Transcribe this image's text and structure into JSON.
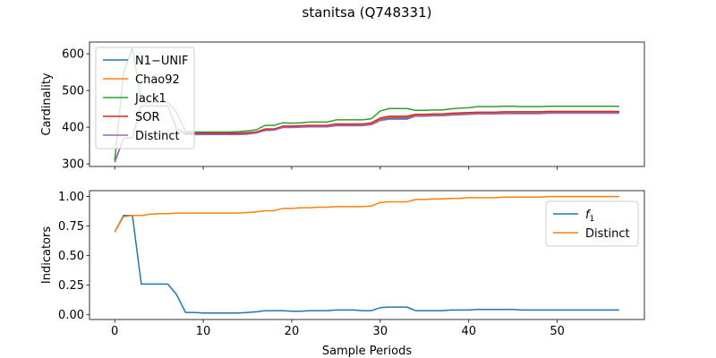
{
  "figure": {
    "title": "stanitsa (Q748331)"
  },
  "chart_data": [
    {
      "type": "line",
      "ylabel": "Cardinality",
      "xlabel": "",
      "xlim": [
        -2.85,
        59.85
      ],
      "ylim": [
        293,
        632
      ],
      "xticks": [
        0,
        10,
        20,
        30,
        40,
        50
      ],
      "xtick_labels_visible": false,
      "yticks": [
        300,
        400,
        500,
        600
      ],
      "grid": false,
      "legend": "upper-left",
      "series": [
        {
          "name": "N1−UNIF",
          "color": "#1f77b4",
          "x": [
            0,
            1,
            2,
            3,
            4,
            5,
            6,
            7,
            8,
            9,
            10,
            11,
            12,
            13,
            14,
            15,
            16,
            17,
            18,
            19,
            20,
            21,
            22,
            23,
            24,
            25,
            26,
            27,
            28,
            29,
            30,
            31,
            32,
            33,
            34,
            35,
            36,
            37,
            38,
            39,
            40,
            41,
            42,
            43,
            44,
            45,
            46,
            47,
            48,
            49,
            50,
            51,
            52,
            53,
            54,
            55,
            56,
            57
          ],
          "y": [
            305,
            370,
            372,
            458,
            458,
            458,
            458,
            395,
            382,
            382,
            382,
            382,
            382,
            382,
            382,
            383,
            386,
            393,
            394,
            401,
            401,
            402,
            403,
            403,
            403,
            406,
            406,
            406,
            406,
            409,
            420,
            425,
            425,
            425,
            432,
            432,
            433,
            433,
            435,
            436,
            437,
            438,
            438,
            438,
            439,
            439,
            439,
            439,
            439,
            440,
            440,
            440,
            440,
            440,
            440,
            440,
            440,
            440
          ]
        },
        {
          "name": "Chao92",
          "color": "#ff7f0e",
          "x": [
            0,
            1,
            2,
            3,
            4,
            5,
            6,
            7,
            8,
            9,
            10,
            11,
            12,
            13,
            14,
            15,
            16,
            17,
            18,
            19,
            20,
            21,
            22,
            23,
            24,
            25,
            26,
            27,
            28,
            29,
            30,
            31,
            32,
            33,
            34,
            35,
            36,
            37,
            38,
            39,
            40,
            41,
            42,
            43,
            44,
            45,
            46,
            47,
            48,
            49,
            50,
            51,
            52,
            53,
            54,
            55,
            56,
            57
          ],
          "y": [
            305,
            370,
            372,
            458,
            458,
            458,
            458,
            395,
            384,
            384,
            384,
            384,
            384,
            384,
            384,
            385,
            387,
            395,
            395,
            402,
            402,
            403,
            404,
            404,
            404,
            408,
            408,
            408,
            408,
            411,
            423,
            428,
            428,
            428,
            434,
            434,
            435,
            435,
            437,
            438,
            439,
            440,
            440,
            440,
            441,
            441,
            441,
            441,
            441,
            442,
            442,
            442,
            442,
            442,
            442,
            442,
            442,
            442
          ]
        },
        {
          "name": "Jack1",
          "color": "#2ca02c",
          "x": [
            0,
            1,
            2,
            3,
            4,
            5,
            6,
            7,
            8,
            9,
            10,
            11,
            12,
            13,
            14,
            15,
            16,
            17,
            18,
            19,
            20,
            21,
            22,
            23,
            24,
            25,
            26,
            27,
            28,
            29,
            30,
            31,
            32,
            33,
            34,
            35,
            36,
            37,
            38,
            39,
            40,
            41,
            42,
            43,
            44,
            45,
            46,
            47,
            48,
            49,
            50,
            51,
            52,
            53,
            54,
            55,
            56,
            57
          ],
          "y": [
            310,
            548,
            617,
            468,
            468,
            468,
            468,
            440,
            388,
            387,
            387,
            387,
            387,
            387,
            388,
            390,
            393,
            405,
            405,
            412,
            411,
            412,
            414,
            414,
            414,
            420,
            420,
            420,
            420,
            423,
            444,
            451,
            451,
            451,
            446,
            446,
            447,
            447,
            450,
            452,
            453,
            456,
            456,
            456,
            457,
            457,
            456,
            456,
            456,
            457,
            457,
            457,
            457,
            457,
            457,
            457,
            457,
            457
          ]
        },
        {
          "name": "SOR",
          "color": "#d62728",
          "x": [
            0,
            1,
            2,
            3,
            4,
            5,
            6,
            7,
            8,
            9,
            10,
            11,
            12,
            13,
            14,
            15,
            16,
            17,
            18,
            19,
            20,
            21,
            22,
            23,
            24,
            25,
            26,
            27,
            28,
            29,
            30,
            31,
            32,
            33,
            34,
            35,
            36,
            37,
            38,
            39,
            40,
            41,
            42,
            43,
            44,
            45,
            46,
            47,
            48,
            49,
            50,
            51,
            52,
            53,
            54,
            55,
            56,
            57
          ],
          "y": [
            305,
            370,
            372,
            458,
            458,
            458,
            458,
            395,
            384,
            384,
            384,
            384,
            384,
            384,
            384,
            385,
            387,
            395,
            395,
            403,
            403,
            404,
            405,
            405,
            405,
            409,
            409,
            409,
            409,
            412,
            425,
            430,
            430,
            430,
            435,
            435,
            436,
            436,
            438,
            439,
            440,
            441,
            441,
            441,
            442,
            442,
            442,
            442,
            442,
            443,
            443,
            443,
            443,
            443,
            443,
            443,
            443,
            443
          ]
        },
        {
          "name": "Distinct",
          "color": "#9467bd",
          "x": [
            0,
            1,
            2,
            3,
            4,
            5,
            6,
            7,
            8,
            9,
            10,
            11,
            12,
            13,
            14,
            15,
            16,
            17,
            18,
            19,
            20,
            21,
            22,
            23,
            24,
            25,
            26,
            27,
            28,
            29,
            30,
            31,
            32,
            33,
            34,
            35,
            36,
            37,
            38,
            39,
            40,
            41,
            42,
            43,
            44,
            45,
            46,
            47,
            48,
            49,
            50,
            51,
            52,
            53,
            54,
            55,
            56,
            57
          ],
          "y": [
            305,
            370,
            372,
            458,
            458,
            458,
            458,
            395,
            380,
            380,
            380,
            380,
            380,
            380,
            380,
            381,
            384,
            391,
            392,
            399,
            399,
            400,
            401,
            401,
            401,
            404,
            404,
            404,
            404,
            407,
            418,
            422,
            422,
            422,
            430,
            430,
            431,
            431,
            433,
            434,
            435,
            436,
            436,
            436,
            437,
            437,
            437,
            437,
            437,
            438,
            438,
            438,
            438,
            438,
            438,
            438,
            438,
            438
          ]
        }
      ]
    },
    {
      "type": "line",
      "ylabel": "Indicators",
      "xlabel": "Sample Periods",
      "xlim": [
        -2.85,
        59.85
      ],
      "ylim": [
        -0.04,
        1.05
      ],
      "xticks": [
        0,
        10,
        20,
        30,
        40,
        50
      ],
      "yticks": [
        0.0,
        0.25,
        0.5,
        0.75,
        1.0
      ],
      "ytick_labels": [
        "0.00",
        "0.25",
        "0.50",
        "0.75",
        "1.00"
      ],
      "grid": false,
      "legend": "upper-right",
      "series": [
        {
          "name": "f1",
          "name_main": "f",
          "name_sub": "1",
          "color": "#1f77b4",
          "x": [
            0,
            1,
            2,
            3,
            4,
            5,
            6,
            7,
            8,
            9,
            10,
            11,
            12,
            13,
            14,
            15,
            16,
            17,
            18,
            19,
            20,
            21,
            22,
            23,
            24,
            25,
            26,
            27,
            28,
            29,
            30,
            31,
            32,
            33,
            34,
            35,
            36,
            37,
            38,
            39,
            40,
            41,
            42,
            43,
            44,
            45,
            46,
            47,
            48,
            49,
            50,
            51,
            52,
            53,
            54,
            55,
            56,
            57
          ],
          "y": [
            0.7,
            0.84,
            0.84,
            0.26,
            0.26,
            0.26,
            0.26,
            0.17,
            0.02,
            0.02,
            0.015,
            0.015,
            0.015,
            0.015,
            0.015,
            0.02,
            0.025,
            0.035,
            0.035,
            0.035,
            0.03,
            0.03,
            0.035,
            0.035,
            0.035,
            0.04,
            0.04,
            0.04,
            0.035,
            0.035,
            0.06,
            0.065,
            0.065,
            0.065,
            0.035,
            0.035,
            0.035,
            0.035,
            0.04,
            0.04,
            0.04,
            0.045,
            0.045,
            0.045,
            0.045,
            0.045,
            0.04,
            0.04,
            0.04,
            0.04,
            0.04,
            0.04,
            0.04,
            0.04,
            0.04,
            0.04,
            0.04,
            0.04
          ]
        },
        {
          "name": "Distinct",
          "color": "#ff7f0e",
          "x": [
            0,
            1,
            2,
            3,
            4,
            5,
            6,
            7,
            8,
            9,
            10,
            11,
            12,
            13,
            14,
            15,
            16,
            17,
            18,
            19,
            20,
            21,
            22,
            23,
            24,
            25,
            26,
            27,
            28,
            29,
            30,
            31,
            32,
            33,
            34,
            35,
            36,
            37,
            38,
            39,
            40,
            41,
            42,
            43,
            44,
            45,
            46,
            47,
            48,
            49,
            50,
            51,
            52,
            53,
            54,
            55,
            56,
            57
          ],
          "y": [
            0.7,
            0.83,
            0.84,
            0.84,
            0.85,
            0.855,
            0.855,
            0.86,
            0.86,
            0.86,
            0.86,
            0.86,
            0.86,
            0.86,
            0.86,
            0.865,
            0.87,
            0.88,
            0.88,
            0.9,
            0.9,
            0.905,
            0.905,
            0.91,
            0.91,
            0.915,
            0.915,
            0.915,
            0.915,
            0.92,
            0.95,
            0.955,
            0.955,
            0.955,
            0.975,
            0.975,
            0.98,
            0.98,
            0.985,
            0.985,
            0.99,
            0.99,
            0.99,
            0.99,
            0.995,
            0.995,
            0.995,
            0.995,
            0.995,
            1.0,
            1.0,
            1.0,
            1.0,
            1.0,
            1.0,
            1.0,
            1.0,
            1.0
          ]
        }
      ]
    }
  ]
}
